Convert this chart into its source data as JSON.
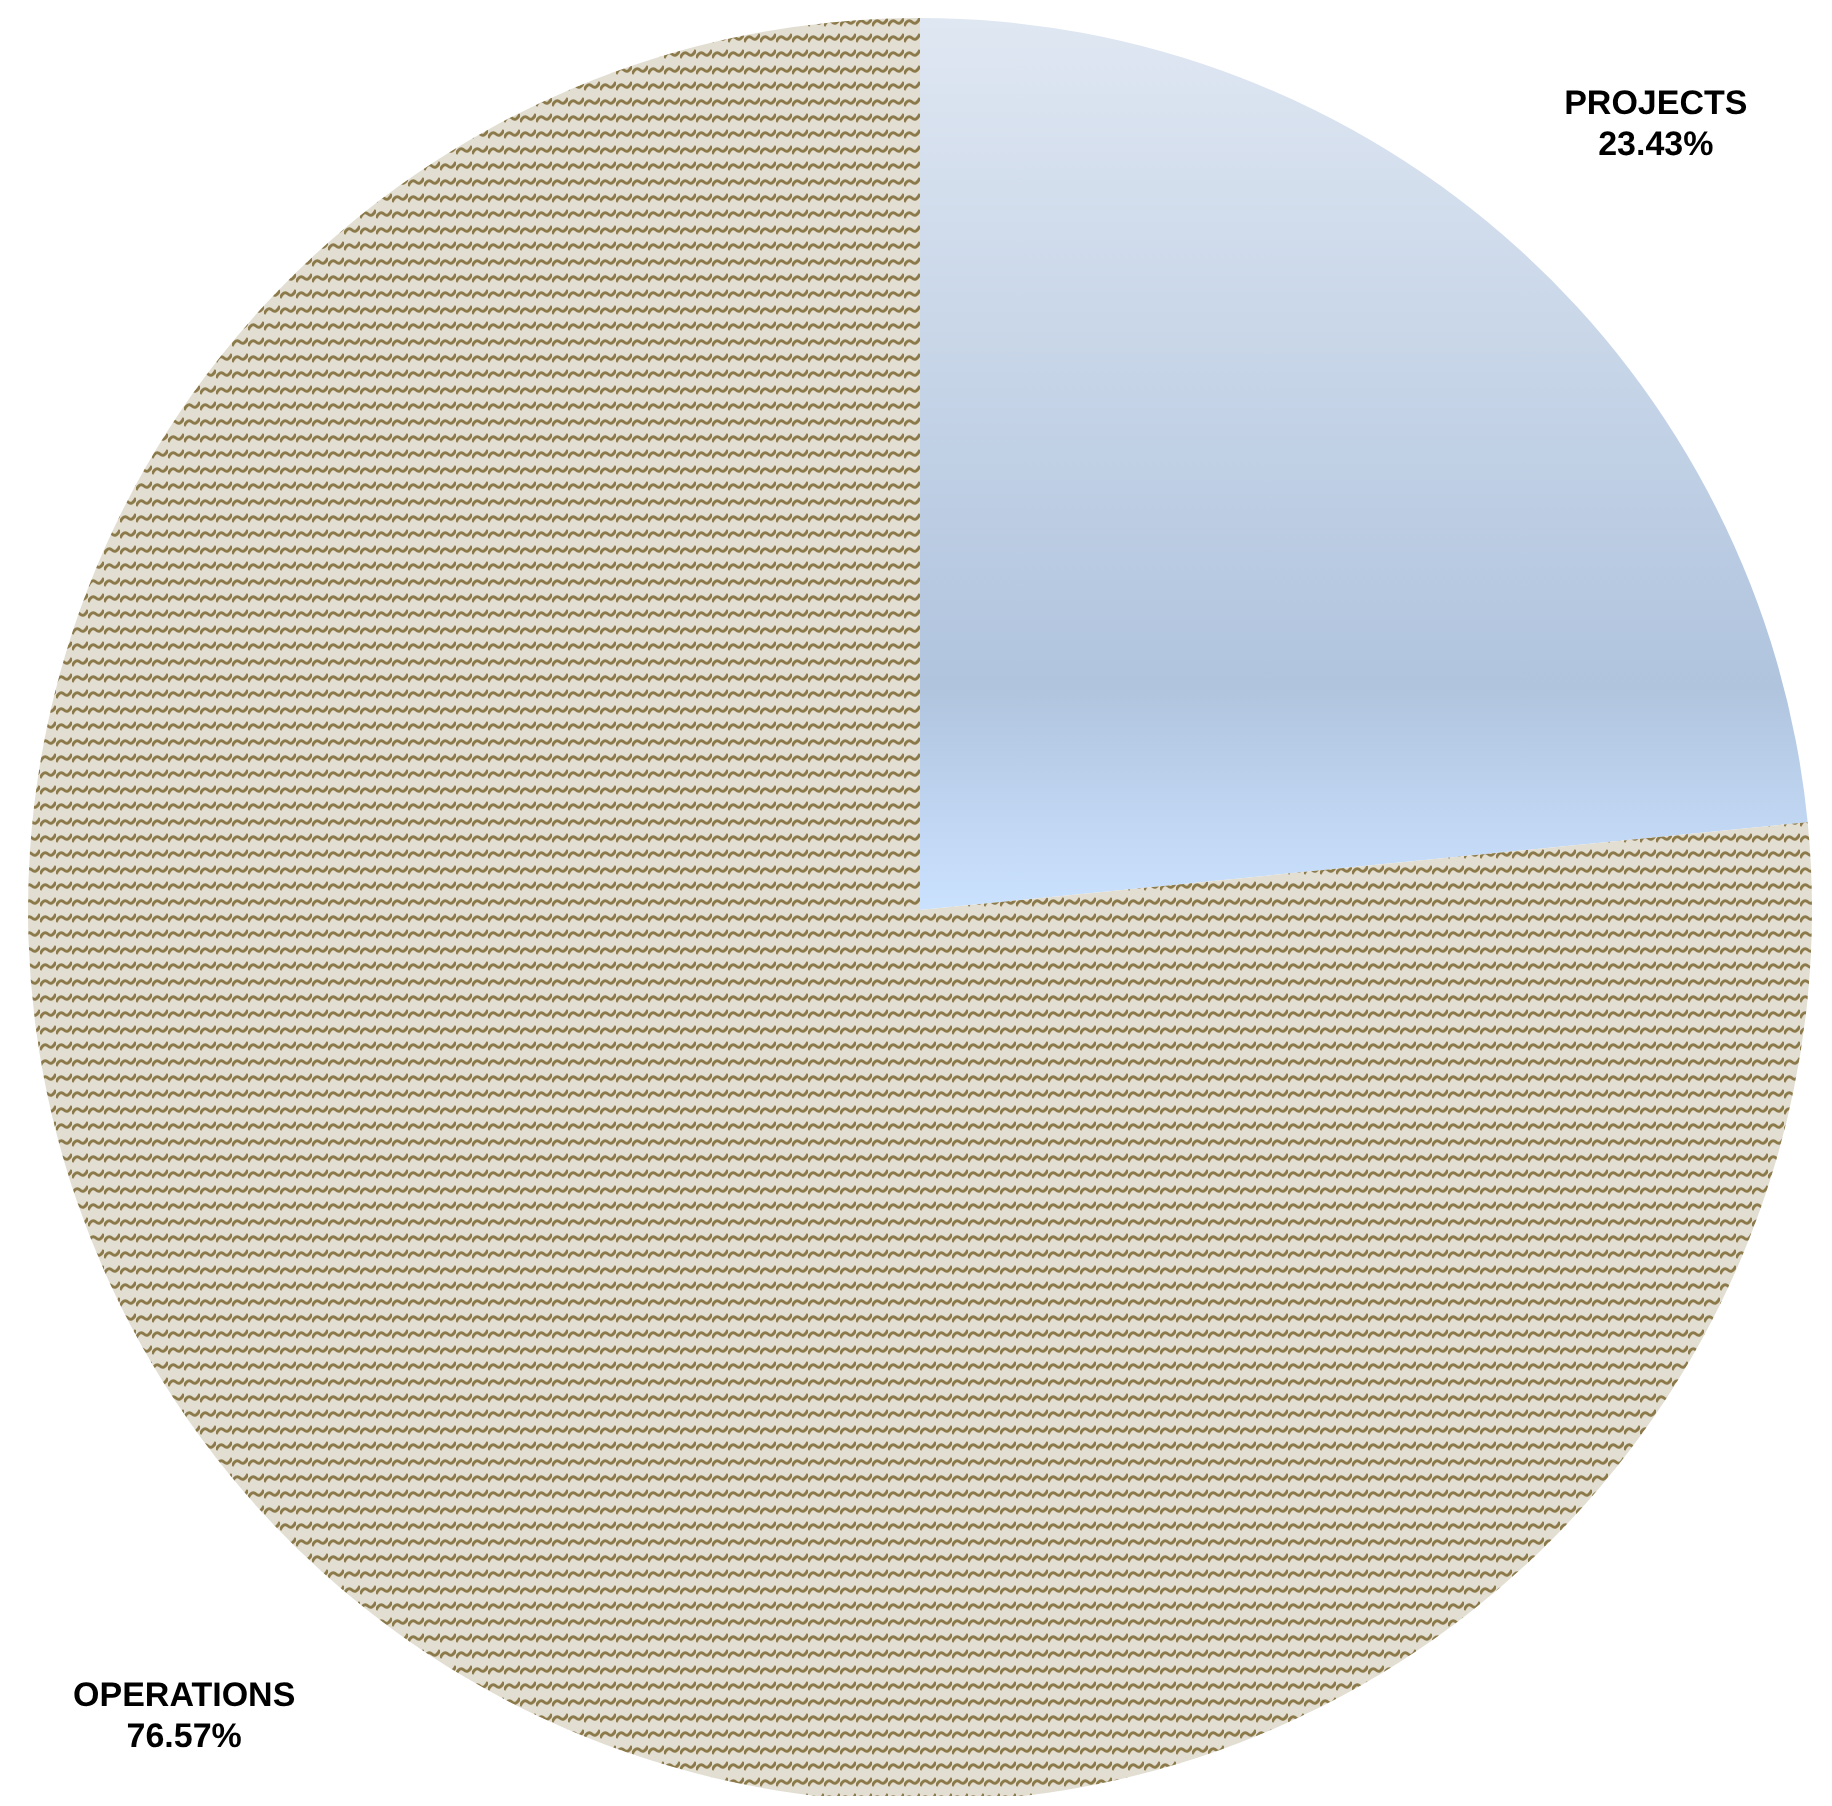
{
  "chart_data": {
    "type": "pie",
    "categories": [
      "PROJECTS",
      "OPERATIONS"
    ],
    "values": [
      23.43,
      76.57
    ],
    "value_labels": [
      "23.43%",
      "76.57%"
    ],
    "colors": [
      "#b0c4de",
      "#8c7a4a"
    ]
  }
}
